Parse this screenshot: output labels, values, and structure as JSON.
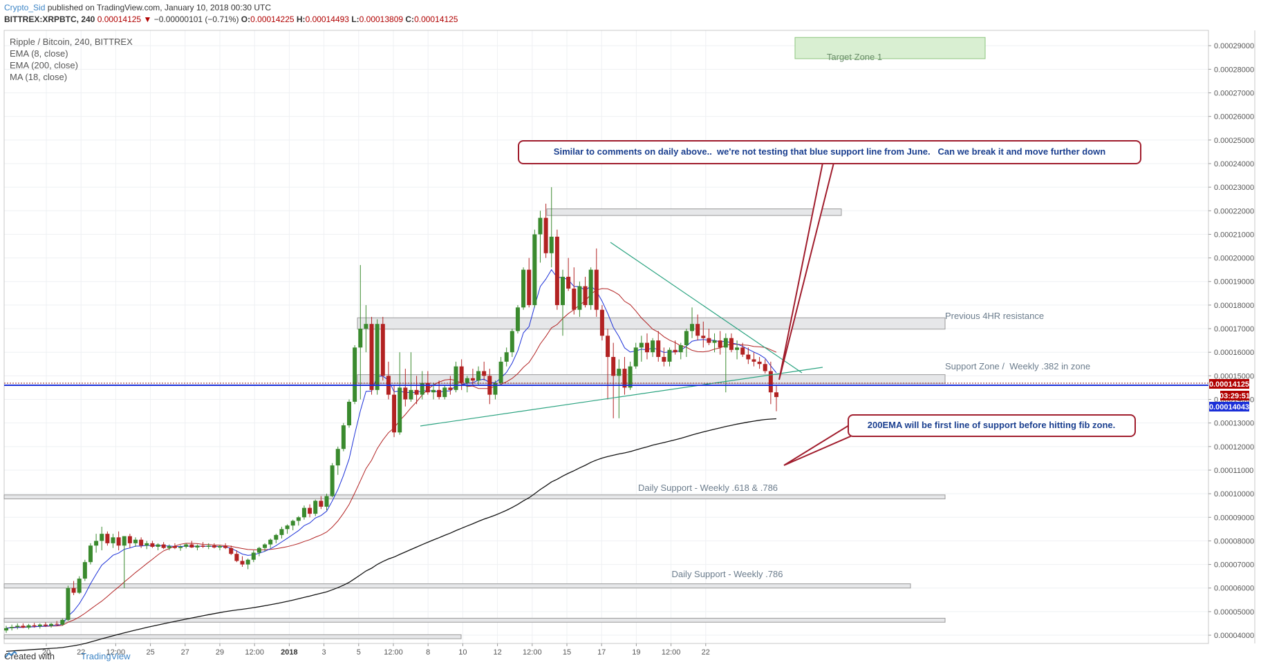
{
  "header": {
    "author": "Crypto_Sid",
    "published": "published on TradingView.com, January 10, 2018 00:30 UTC",
    "symbol": "BITTREX:XRPBTC, 240",
    "last": "0.00014125",
    "change_arrow": "▼",
    "change": "−0.00000101 (−0.71%)",
    "o_label": "O:",
    "o": "0.00014225",
    "h_label": "H:",
    "h": "0.00014493",
    "l_label": "L:",
    "l": "0.00013809",
    "c_label": "C:",
    "c": "0.00014125"
  },
  "legend": {
    "title": "Ripple / Bitcoin, 240, BITTREX",
    "ind1": "EMA (8, close)",
    "ind2": "EMA (200, close)",
    "ind3": "MA (18, close)"
  },
  "footer": {
    "created": "Created with",
    "brand": "TradingView"
  },
  "colors": {
    "up": "#3a8a2e",
    "down": "#b22222",
    "ema8": "#1a2fd8",
    "ema200": "#111111",
    "ma18": "#b22222",
    "trend": "#2aa380",
    "annot": "#a01c2c",
    "annot_text": "#1a3f8f",
    "price_line": "#1a2fd8"
  },
  "chart_data": {
    "type": "candlestick",
    "title": "Ripple / Bitcoin, 240, BITTREX",
    "ylim": [
      3.65e-05,
      0.0002965
    ],
    "x_ticks": [
      "20",
      "22",
      "12:00",
      "25",
      "27",
      "29",
      "12:00",
      "2018",
      "3",
      "5",
      "12:00",
      "8",
      "10",
      "12",
      "12:00",
      "15",
      "17",
      "19",
      "12:00",
      "22"
    ],
    "y_ticks": [
      "0.00029000",
      "0.00028000",
      "0.00027000",
      "0.00026000",
      "0.00025000",
      "0.00024000",
      "0.00023000",
      "0.00022000",
      "0.00021000",
      "0.00020000",
      "0.00019000",
      "0.00018000",
      "0.00017000",
      "0.00016000",
      "0.00015000",
      "0.00014000",
      "0.00013000",
      "0.00012000",
      "0.00011000",
      "0.00010000",
      "0.00009000",
      "0.00008000",
      "0.00007000",
      "0.00006000",
      "0.00005000",
      "0.00004000"
    ],
    "price_badges": {
      "last": "0.00014125",
      "countdown": "03:29:51",
      "line": "0.00014043"
    },
    "zones": [
      {
        "label": "Target Zone 1",
        "low": 0.0002845,
        "high": 0.0002935
      },
      {
        "label": "",
        "low": 0.000218,
        "high": 0.0002208
      },
      {
        "label": "Previous 4HR resistance",
        "low": 0.0001698,
        "high": 0.0001746
      },
      {
        "label": "Support Zone /  Weekly .382 in zone",
        "low": 0.0001468,
        "high": 0.0001505
      },
      {
        "label": "",
        "low": 9.78e-05,
        "high": 9.95e-05
      },
      {
        "label": "Daily Support - Weekly .618 & .786",
        "low": 9.78e-05,
        "high": 9.78e-05
      },
      {
        "label": "",
        "low": 6e-05,
        "high": 6.18e-05
      },
      {
        "label": "Daily Support - Weekly .786",
        "low": 6e-05,
        "high": 6e-05
      },
      {
        "label": "",
        "low": 4.55e-05,
        "high": 4.72e-05
      },
      {
        "label": "",
        "low": 3.85e-05,
        "high": 4.02e-05
      }
    ],
    "annotations": [
      {
        "text": "Similar to comments on daily above..  we're not testing that blue support line from June.   Can we break it and move further down"
      },
      {
        "text": "200EMA will be first line of support before hitting fib zone."
      }
    ],
    "candles": [
      [
        4.2e-05,
        4.4e-05,
        4.1e-05,
        4.3e-05
      ],
      [
        4.3e-05,
        4.45e-05,
        4.2e-05,
        4.35e-05
      ],
      [
        4.35e-05,
        4.5e-05,
        4.25e-05,
        4.4e-05
      ],
      [
        4.4e-05,
        4.5e-05,
        4.3e-05,
        4.32e-05
      ],
      [
        4.32e-05,
        4.48e-05,
        4.25e-05,
        4.42e-05
      ],
      [
        4.42e-05,
        4.52e-05,
        4.32e-05,
        4.38e-05
      ],
      [
        4.38e-05,
        4.5e-05,
        4.28e-05,
        4.45e-05
      ],
      [
        4.45e-05,
        4.55e-05,
        4.35e-05,
        4.4e-05
      ],
      [
        4.4e-05,
        4.52e-05,
        4.32e-05,
        4.48e-05
      ],
      [
        4.48e-05,
        4.6e-05,
        4.38e-05,
        4.45e-05
      ],
      [
        4.45e-05,
        4.7e-05,
        4.4e-05,
        4.65e-05
      ],
      [
        4.65e-05,
        6.1e-05,
        4.6e-05,
        6e-05
      ],
      [
        6e-05,
        6.3e-05,
        5.7e-05,
        5.8e-05
      ],
      [
        5.8e-05,
        6.5e-05,
        5.75e-05,
        6.4e-05
      ],
      [
        6.4e-05,
        7.2e-05,
        6.3e-05,
        7.1e-05
      ],
      [
        7.1e-05,
        7.9e-05,
        7e-05,
        7.8e-05
      ],
      [
        7.8e-05,
        8.3e-05,
        7.5e-05,
        8e-05
      ],
      [
        8e-05,
        8.6e-05,
        7.6e-05,
        8.3e-05
      ],
      [
        8.3e-05,
        8.4e-05,
        7.8e-05,
        7.9e-05
      ],
      [
        7.9e-05,
        8.3e-05,
        7.7e-05,
        8.15e-05
      ],
      [
        8.15e-05,
        8.4e-05,
        7.6e-05,
        7.8e-05
      ],
      [
        7.8e-05,
        8.2e-05,
        6e-05,
        8.2e-05
      ],
      [
        8.2e-05,
        8.3e-05,
        7.7e-05,
        7.9e-05
      ],
      [
        7.9e-05,
        8.15e-05,
        7.75e-05,
        8.05e-05
      ],
      [
        8.05e-05,
        8.15e-05,
        7.7e-05,
        7.8e-05
      ],
      [
        7.8e-05,
        8e-05,
        7.65e-05,
        7.9e-05
      ],
      [
        7.9e-05,
        8e-05,
        7.7e-05,
        7.75e-05
      ],
      [
        7.75e-05,
        7.9e-05,
        7.6e-05,
        7.85e-05
      ],
      [
        7.85e-05,
        7.95e-05,
        7.65e-05,
        7.7e-05
      ],
      [
        7.7e-05,
        7.85e-05,
        7.6e-05,
        7.78e-05
      ],
      [
        7.78e-05,
        7.9e-05,
        7.65e-05,
        7.7e-05
      ],
      [
        7.7e-05,
        7.82e-05,
        7.58e-05,
        7.75e-05
      ],
      [
        7.75e-05,
        7.9e-05,
        7.68e-05,
        7.85e-05
      ],
      [
        7.85e-05,
        8e-05,
        7.7e-05,
        7.72e-05
      ],
      [
        7.72e-05,
        7.85e-05,
        7.6e-05,
        7.8e-05
      ],
      [
        7.8e-05,
        7.95e-05,
        7.7e-05,
        7.75e-05
      ],
      [
        7.75e-05,
        7.9e-05,
        7.65e-05,
        7.8e-05
      ],
      [
        7.8e-05,
        7.9e-05,
        7.68e-05,
        7.72e-05
      ],
      [
        7.72e-05,
        7.82e-05,
        7.6e-05,
        7.78e-05
      ],
      [
        7.78e-05,
        7.9e-05,
        7.65e-05,
        7.7e-05
      ],
      [
        7.7e-05,
        7.8e-05,
        7.4e-05,
        7.45e-05
      ],
      [
        7.45e-05,
        7.6e-05,
        7.1e-05,
        7.15e-05
      ],
      [
        7.15e-05,
        7.35e-05,
        6.9e-05,
        7e-05
      ],
      [
        7e-05,
        7.25e-05,
        6.8e-05,
        7.2e-05
      ],
      [
        7.2e-05,
        7.6e-05,
        7.1e-05,
        7.5e-05
      ],
      [
        7.5e-05,
        7.75e-05,
        7.35e-05,
        7.7e-05
      ],
      [
        7.7e-05,
        7.9e-05,
        7.55e-05,
        7.85e-05
      ],
      [
        7.85e-05,
        8.1e-05,
        7.7e-05,
        8.05e-05
      ],
      [
        8.05e-05,
        8.3e-05,
        7.9e-05,
        8.25e-05
      ],
      [
        8.25e-05,
        8.6e-05,
        8.1e-05,
        8.5e-05
      ],
      [
        8.5e-05,
        8.7e-05,
        8.3e-05,
        8.65e-05
      ],
      [
        8.65e-05,
        8.9e-05,
        8.45e-05,
        8.85e-05
      ],
      [
        8.85e-05,
        9.05e-05,
        8.65e-05,
        9e-05
      ],
      [
        9e-05,
        9.5e-05,
        8.9e-05,
        9.4e-05
      ],
      [
        9.4e-05,
        9.55e-05,
        9e-05,
        9.15e-05
      ],
      [
        9.15e-05,
        9.75e-05,
        9.05e-05,
        9.7e-05
      ],
      [
        9.7e-05,
        9.9e-05,
        9.35e-05,
        9.45e-05
      ],
      [
        9.45e-05,
        0.0001,
        9.3e-05,
        9.9e-05
      ],
      [
        9.9e-05,
        0.000113,
        9.85e-05,
        0.000112
      ],
      [
        0.000112,
        0.00012,
        0.000108,
        0.000119
      ],
      [
        0.000119,
        0.00013,
        0.000118,
        0.000129
      ],
      [
        0.000129,
        0.00014,
        0.000128,
        0.000139
      ],
      [
        0.000139,
        0.000163,
        0.000138,
        0.000162
      ],
      [
        0.000162,
        0.000197,
        0.00014,
        0.00017
      ],
      [
        0.00017,
        0.00018,
        0.00016,
        0.000172
      ],
      [
        0.000172,
        0.000175,
        0.000142,
        0.000144
      ],
      [
        0.000144,
        0.000174,
        0.000142,
        0.000172
      ],
      [
        0.000172,
        0.000175,
        0.000148,
        0.00015
      ],
      [
        0.00015,
        0.000156,
        0.00014,
        0.000142
      ],
      [
        0.000142,
        0.000146,
        0.000124,
        0.000126
      ],
      [
        0.000126,
        0.00016,
        0.000125,
        0.000145
      ],
      [
        0.000145,
        0.000153,
        0.000137,
        0.00014
      ],
      [
        0.00014,
        0.00016,
        0.000139,
        0.000144
      ],
      [
        0.000144,
        0.00015,
        0.000138,
        0.000142
      ],
      [
        0.000142,
        0.000152,
        0.00014,
        0.000147
      ],
      [
        0.000147,
        0.000152,
        0.000142,
        0.000143
      ],
      [
        0.000143,
        0.000147,
        0.00014,
        0.000144
      ],
      [
        0.000144,
        0.000148,
        0.00014,
        0.000141
      ],
      [
        0.000141,
        0.000146,
        0.00014,
        0.000145
      ],
      [
        0.000145,
        0.00015,
        0.000142,
        0.000144
      ],
      [
        0.000144,
        0.000156,
        0.000143,
        0.000154
      ],
      [
        0.000154,
        0.000157,
        0.000144,
        0.000147
      ],
      [
        0.000147,
        0.00015,
        0.000143,
        0.000149
      ],
      [
        0.000149,
        0.000153,
        0.000146,
        0.000148
      ],
      [
        0.000148,
        0.000154,
        0.000146,
        0.000152
      ],
      [
        0.000152,
        0.000156,
        0.000148,
        0.00015
      ],
      [
        0.00015,
        0.000153,
        0.000138,
        0.000142
      ],
      [
        0.000142,
        0.000148,
        0.00014,
        0.000147
      ],
      [
        0.000147,
        0.000158,
        0.000146,
        0.000156
      ],
      [
        0.000156,
        0.000162,
        0.000154,
        0.00016
      ],
      [
        0.00016,
        0.00017,
        0.000158,
        0.000169
      ],
      [
        0.000169,
        0.00018,
        0.000168,
        0.000179
      ],
      [
        0.000179,
        0.000196,
        0.000178,
        0.000195
      ],
      [
        0.000195,
        0.0002,
        0.000179,
        0.00018
      ],
      [
        0.00018,
        0.000212,
        0.000179,
        0.00021
      ],
      [
        0.00021,
        0.00022,
        0.000198,
        0.000217
      ],
      [
        0.000217,
        0.000223,
        0.0002,
        0.000202
      ],
      [
        0.000202,
        0.00023,
        0.000196,
        0.000209
      ],
      [
        0.000209,
        0.000212,
        0.000178,
        0.00018
      ],
      [
        0.00018,
        0.000195,
        0.000167,
        0.000192
      ],
      [
        0.000192,
        0.0002,
        0.000186,
        0.000187
      ],
      [
        0.000187,
        0.000196,
        0.000176,
        0.000178
      ],
      [
        0.000178,
        0.00019,
        0.000175,
        0.000188
      ],
      [
        0.000188,
        0.000192,
        0.000179,
        0.00018
      ],
      [
        0.00018,
        0.000196,
        0.000178,
        0.000195
      ],
      [
        0.000195,
        0.000204,
        0.000175,
        0.000178
      ],
      [
        0.000178,
        0.00018,
        0.000165,
        0.000167
      ],
      [
        0.000167,
        0.00017,
        0.00014,
        0.000158
      ],
      [
        0.000158,
        0.000164,
        0.000132,
        0.00015
      ],
      [
        0.00015,
        0.000157,
        0.000132,
        0.000153
      ],
      [
        0.000153,
        0.000158,
        0.000142,
        0.000145
      ],
      [
        0.000145,
        0.000156,
        0.000144,
        0.000154
      ],
      [
        0.000154,
        0.000164,
        0.000153,
        0.000162
      ],
      [
        0.000162,
        0.000167,
        0.000156,
        0.000164
      ],
      [
        0.000164,
        0.000168,
        0.000157,
        0.00016
      ],
      [
        0.00016,
        0.000166,
        0.000158,
        0.000165
      ],
      [
        0.000165,
        0.000169,
        0.000156,
        0.000158
      ],
      [
        0.000158,
        0.000162,
        0.000154,
        0.000156
      ],
      [
        0.000156,
        0.000162,
        0.000154,
        0.000161
      ],
      [
        0.000161,
        0.000165,
        0.000159,
        0.00016
      ],
      [
        0.00016,
        0.000164,
        0.000157,
        0.000163
      ],
      [
        0.000163,
        0.00017,
        0.000158,
        0.000169
      ],
      [
        0.000169,
        0.000179,
        0.000166,
        0.000172
      ],
      [
        0.000172,
        0.000176,
        0.000165,
        0.000167
      ],
      [
        0.000167,
        0.000173,
        0.000162,
        0.000166
      ],
      [
        0.000166,
        0.00017,
        0.000163,
        0.000164
      ],
      [
        0.000164,
        0.000168,
        0.00016,
        0.000165
      ],
      [
        0.000165,
        0.000169,
        0.000159,
        0.000162
      ],
      [
        0.000162,
        0.000168,
        0.000143,
        0.000166
      ],
      [
        0.000166,
        0.000168,
        0.00016,
        0.000161
      ],
      [
        0.000161,
        0.000165,
        0.000157,
        0.000162
      ],
      [
        0.000162,
        0.000164,
        0.000158,
        0.000159
      ],
      [
        0.000159,
        0.000162,
        0.000155,
        0.000157
      ],
      [
        0.000157,
        0.00016,
        0.000154,
        0.000156
      ],
      [
        0.000156,
        0.000158,
        0.000153,
        0.000155
      ],
      [
        0.000155,
        0.000157,
        0.000151,
        0.000152
      ],
      [
        0.000152,
        0.000156,
        0.000138,
        0.000143
      ],
      [
        0.000143,
        0.000146,
        0.000135,
        0.000141
      ]
    ]
  }
}
